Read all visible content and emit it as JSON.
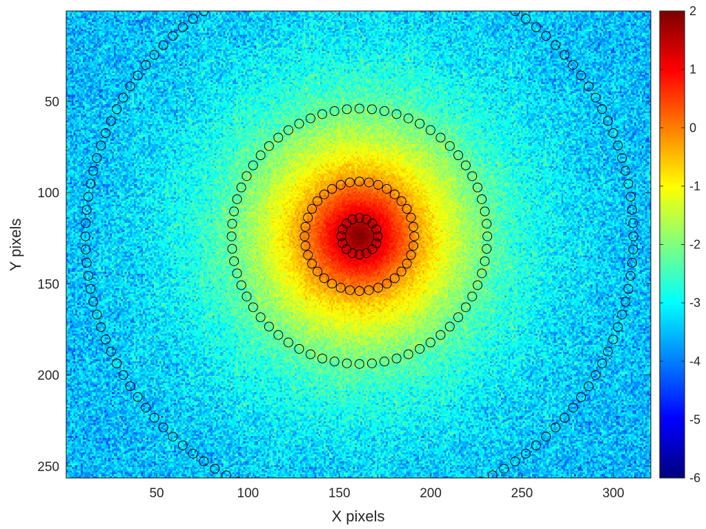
{
  "chart_data": {
    "type": "heatmap",
    "xlabel": "X pixels",
    "ylabel": "Y pixels",
    "xlim": [
      0.5,
      320.5
    ],
    "ylim": [
      0.5,
      256.5
    ],
    "y_direction": "reversed",
    "x_ticks": [
      50,
      100,
      150,
      200,
      250,
      300
    ],
    "y_ticks": [
      50,
      100,
      150,
      200,
      250
    ],
    "x_tick_labels": [
      "50",
      "100",
      "150",
      "200",
      "250",
      "300"
    ],
    "y_tick_labels": [
      "50",
      "100",
      "150",
      "200",
      "250"
    ],
    "colormap": "jet",
    "color_range": [
      -6,
      2
    ],
    "colorbar": {
      "position": "right",
      "ticks": [
        2,
        1,
        0,
        -1,
        -2,
        -3,
        -4,
        -5,
        -6
      ],
      "tick_labels": [
        "2",
        "1",
        "0",
        "-1",
        "-2",
        "-3",
        "-4",
        "-5",
        "-6"
      ]
    },
    "intensity": {
      "description": "log-scale radial intensity, centered speckle pattern",
      "center": [
        161,
        124
      ],
      "peak_value": 2,
      "background_value": -3.6,
      "noise": "high at edges, low near center"
    },
    "ring_markers": {
      "marker": "open circle",
      "marker_color": "#000000",
      "center": [
        161,
        124
      ],
      "rings": [
        {
          "radius": 10,
          "count": 16
        },
        {
          "radius": 30,
          "count": 36
        },
        {
          "radius": 70,
          "count": 64
        },
        {
          "radius": 150,
          "count": 130
        }
      ]
    }
  }
}
